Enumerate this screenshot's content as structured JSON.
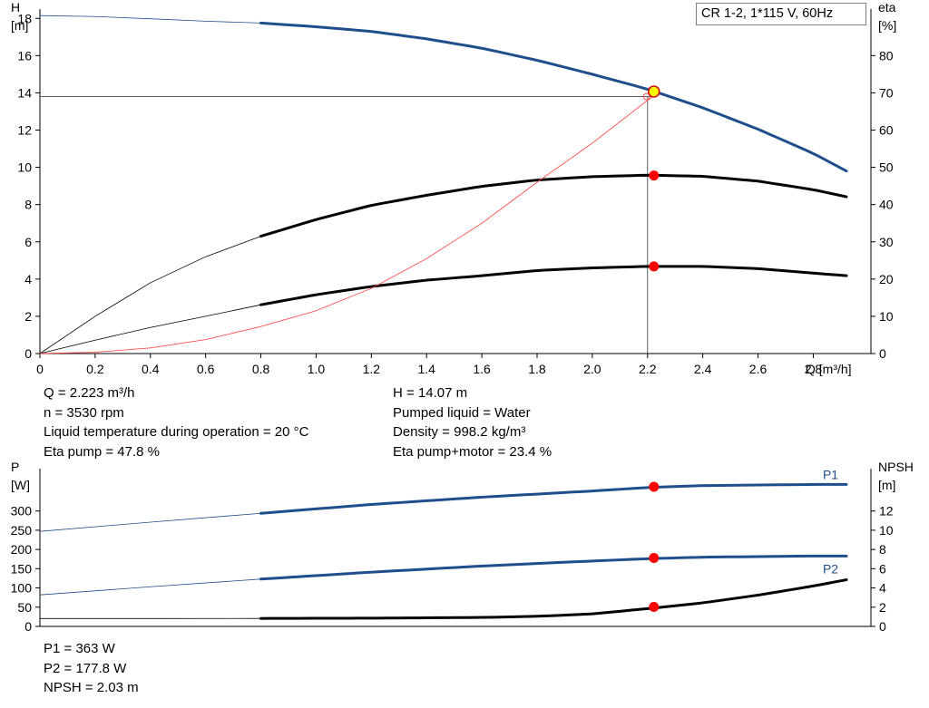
{
  "chart_data": [
    {
      "type": "line",
      "title": "CR 1-2, 1*115 V, 60Hz",
      "x_axis": {
        "label": "Q [m³/h]",
        "range": [
          0,
          2.93
        ],
        "ticks": [
          0,
          0.2,
          0.4,
          0.6,
          0.8,
          1.0,
          1.2,
          1.4,
          1.6,
          1.8,
          2.0,
          2.2,
          2.4,
          2.6,
          2.8
        ],
        "tick_labels": [
          "0",
          "0.2",
          "0.4",
          "0.6",
          "0.8",
          "1.0",
          "1.2",
          "1.4",
          "1.6",
          "1.8",
          "2.0",
          "2.2",
          "2.4",
          "2.6",
          "2.8"
        ]
      },
      "y_left": {
        "label_name": "H",
        "label_unit": "[m]",
        "range": [
          0,
          18.5
        ],
        "ticks": [
          0,
          2,
          4,
          6,
          8,
          10,
          12,
          14,
          16,
          18
        ],
        "tick_labels": [
          "0",
          "2",
          "4",
          "6",
          "8",
          "10",
          "12",
          "14",
          "16",
          "18"
        ]
      },
      "y_right": {
        "label_name": "eta",
        "label_unit": "[%]",
        "range": [
          0,
          92.5
        ],
        "ticks": [
          0,
          10,
          20,
          30,
          40,
          50,
          60,
          70,
          80
        ],
        "tick_labels": [
          "0",
          "10",
          "20",
          "30",
          "40",
          "50",
          "60",
          "70",
          "80"
        ]
      },
      "series": [
        {
          "name": "",
          "axis": "left",
          "color": "#1f4e8c",
          "x": [
            0,
            0.2,
            0.4,
            0.6,
            0.8,
            1.0,
            1.2,
            1.4,
            1.6,
            1.8,
            2.0,
            2.2,
            2.4,
            2.6,
            2.8,
            2.92
          ],
          "y": [
            18.15,
            18.1,
            17.98,
            17.85,
            17.75,
            17.55,
            17.3,
            16.9,
            16.4,
            15.75,
            15.0,
            14.2,
            13.2,
            12.05,
            10.75,
            9.8
          ]
        },
        {
          "name": "",
          "axis": "right",
          "color": "#000000",
          "x": [
            0,
            0.2,
            0.4,
            0.6,
            0.8,
            1.0,
            1.2,
            1.4,
            1.6,
            1.8,
            2.0,
            2.2,
            2.4,
            2.6,
            2.8,
            2.92
          ],
          "y": [
            0,
            10,
            19,
            26,
            31.5,
            36,
            39.8,
            42.5,
            44.9,
            46.6,
            47.5,
            47.9,
            47.6,
            46.3,
            44,
            42.1
          ]
        },
        {
          "name": "",
          "axis": "right",
          "color": "#000000",
          "x": [
            0,
            0.2,
            0.4,
            0.6,
            0.8,
            1.0,
            1.2,
            1.4,
            1.6,
            1.8,
            2.0,
            2.2,
            2.4,
            2.6,
            2.8,
            2.92
          ],
          "y": [
            0,
            3.6,
            7,
            10,
            13.1,
            15.8,
            18,
            19.7,
            20.9,
            22.3,
            23,
            23.4,
            23.4,
            22.8,
            21.6,
            20.9
          ]
        },
        {
          "name": "",
          "axis": "left",
          "color": "#ff5050",
          "x": [
            0,
            0.2,
            0.4,
            0.6,
            0.8,
            1.0,
            1.2,
            1.4,
            1.6,
            1.8,
            2.0,
            2.2,
            2.22
          ],
          "y": [
            0,
            0.07,
            0.3,
            0.75,
            1.45,
            2.3,
            3.5,
            5.1,
            7.0,
            9.2,
            11.3,
            13.6,
            13.8
          ]
        }
      ],
      "reference_lines": {
        "h_y": 13.8,
        "v_x": 2.2
      },
      "duty_point": {
        "x": 2.223,
        "y": 14.07
      },
      "markers": [
        {
          "x": 2.223,
          "y": 47.8,
          "axis": "right"
        },
        {
          "x": 2.223,
          "y": 23.4,
          "axis": "right"
        }
      ]
    },
    {
      "type": "line",
      "x_axis": {
        "range": [
          0,
          2.93
        ]
      },
      "y_left": {
        "label_name": "P",
        "label_unit": "[W]",
        "range": [
          0,
          410
        ],
        "ticks": [
          0,
          50,
          100,
          150,
          200,
          250,
          300
        ],
        "tick_labels": [
          "0",
          "50",
          "100",
          "150",
          "200",
          "250",
          "300"
        ]
      },
      "y_right": {
        "label_name": "NPSH",
        "label_unit": "[m]",
        "range": [
          0,
          16.4
        ],
        "ticks": [
          0,
          2,
          4,
          6,
          8,
          10,
          12
        ],
        "tick_labels": [
          "0",
          "2",
          "4",
          "6",
          "8",
          "10",
          "12"
        ]
      },
      "series": [
        {
          "name": "P1",
          "axis": "left",
          "color": "#1f4e8c",
          "x": [
            0,
            0.4,
            0.8,
            1.2,
            1.6,
            2.0,
            2.2,
            2.4,
            2.8,
            2.92
          ],
          "y": [
            247,
            271,
            294,
            317,
            336,
            352,
            361,
            366,
            369,
            369
          ]
        },
        {
          "name": "P2",
          "axis": "left",
          "color": "#1f4e8c",
          "x": [
            0,
            0.4,
            0.8,
            1.2,
            1.6,
            2.0,
            2.2,
            2.4,
            2.8,
            2.92
          ],
          "y": [
            82,
            103,
            123,
            141,
            157,
            170,
            176,
            180,
            183,
            183
          ]
        },
        {
          "name": "",
          "axis": "right",
          "color": "#000000",
          "x": [
            0,
            0.4,
            0.8,
            1.2,
            1.6,
            1.8,
            2.0,
            2.2,
            2.4,
            2.6,
            2.8,
            2.92
          ],
          "y": [
            0.82,
            0.82,
            0.83,
            0.86,
            0.93,
            1.05,
            1.3,
            1.85,
            2.45,
            3.25,
            4.2,
            4.85
          ]
        }
      ],
      "markers": [
        {
          "x": 2.223,
          "y": 363,
          "axis": "left"
        },
        {
          "x": 2.223,
          "y": 177.8,
          "axis": "left"
        },
        {
          "x": 2.223,
          "y": 2.03,
          "axis": "right"
        }
      ]
    }
  ],
  "info_top_left": [
    "Q = 2.223 m³/h",
    "n = 3530 rpm",
    "Liquid temperature during operation = 20 °C",
    "Eta pump = 47.8 %"
  ],
  "info_top_right": [
    "H = 14.07 m",
    "Pumped liquid = Water",
    "Density = 998.2 kg/m³",
    "Eta pump+motor = 23.4 %"
  ],
  "info_bottom": [
    "P1 = 363 W",
    "P2 = 177.8 W",
    "NPSH = 2.03 m"
  ],
  "colors": {
    "head_curve": "#1f4e8c",
    "power_curves": "#1f4e8c",
    "efficiency_curves": "#000000",
    "system_curve": "#ff5050",
    "duty_point_fill": "#ffff00",
    "marker_fill": "#ff0000",
    "axis": "#000000"
  }
}
